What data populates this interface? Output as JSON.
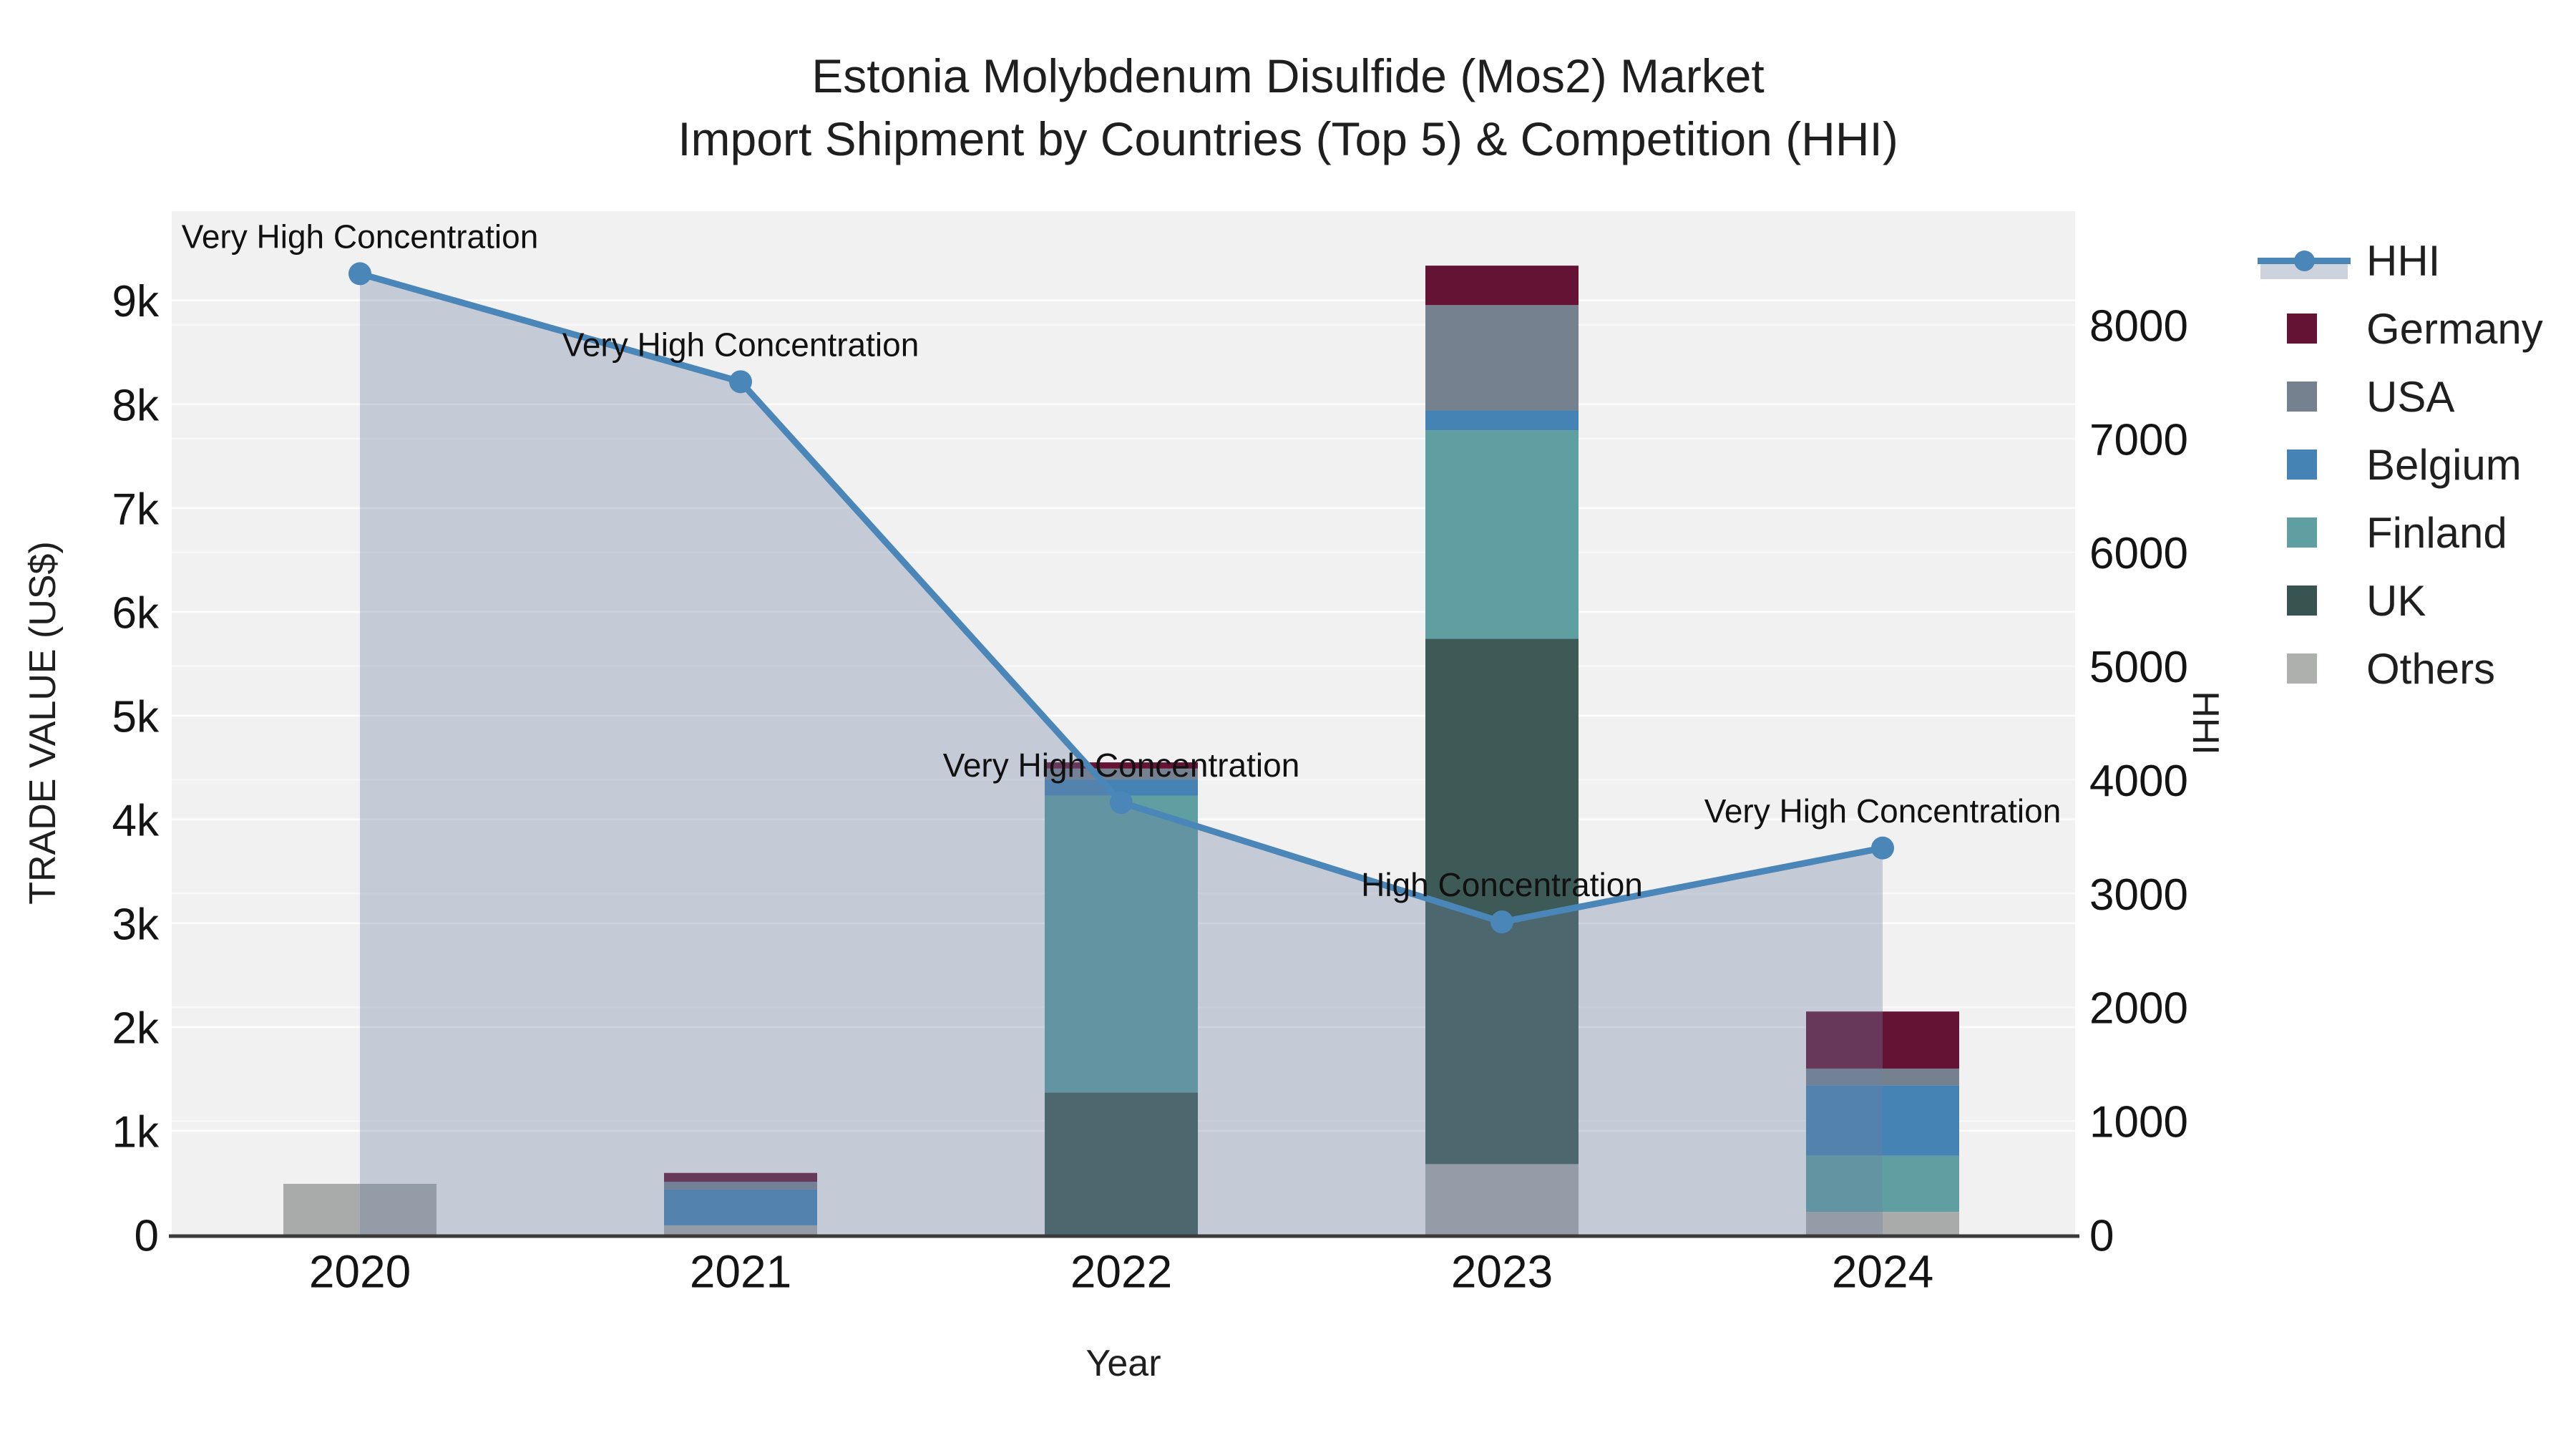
{
  "title": {
    "line1": "Estonia Molybdenum Disulfide (Mos2) Market",
    "line2": "Import Shipment by Countries (Top 5) & Competition (HHI)"
  },
  "chart_data": {
    "type": "bar",
    "subtype": "stacked-bars-with-line",
    "categories": [
      "2020",
      "2021",
      "2022",
      "2023",
      "2024"
    ],
    "series": [
      {
        "name": "Others",
        "color": "#a9abab",
        "values": [
          490,
          90,
          0,
          680,
          220
        ]
      },
      {
        "name": "UK",
        "color": "#3d5a56",
        "values": [
          0,
          0,
          1370,
          5060,
          0
        ]
      },
      {
        "name": "Finland",
        "color": "#5f9fa1",
        "values": [
          0,
          0,
          2860,
          2010,
          540
        ]
      },
      {
        "name": "Belgium",
        "color": "#4683b5",
        "values": [
          0,
          345,
          155,
          190,
          680
        ]
      },
      {
        "name": "USA",
        "color": "#75818f",
        "values": [
          0,
          75,
          105,
          1015,
          160
        ]
      },
      {
        "name": "Germany",
        "color": "#641335",
        "values": [
          0,
          85,
          60,
          380,
          550
        ]
      }
    ],
    "line_series": {
      "name": "HHI",
      "color": "#4a86b8",
      "fill": "rgba(108,130,162,0.34)",
      "values": [
        8450,
        7500,
        3800,
        2750,
        3400
      ]
    },
    "annotations": [
      "Very High Concentration",
      "Very High Concentration",
      "Very High Concentration",
      "High Concentration",
      "Very High Concentration"
    ],
    "axes": {
      "x": {
        "title": "Year"
      },
      "y_left": {
        "title": "TRADE VALUE (US$)",
        "tick_labels": [
          "0",
          "1k",
          "2k",
          "3k",
          "4k",
          "5k",
          "6k",
          "7k",
          "8k",
          "9k"
        ],
        "tick_values": [
          0,
          1000,
          2000,
          3000,
          4000,
          5000,
          6000,
          7000,
          8000,
          9000
        ],
        "max": 9860
      },
      "y_right": {
        "title": "HHI",
        "tick_labels": [
          "0",
          "1000",
          "2000",
          "3000",
          "4000",
          "5000",
          "6000",
          "7000",
          "8000"
        ],
        "tick_values": [
          0,
          1000,
          2000,
          3000,
          4000,
          5000,
          6000,
          7000,
          8000
        ],
        "max": 9000
      }
    },
    "legend": {
      "items": [
        {
          "label": "HHI",
          "type": "line",
          "color": "#4a86b8",
          "fill": "#ccd3dd"
        },
        {
          "label": "Germany",
          "type": "color",
          "color": "#641335"
        },
        {
          "label": "USA",
          "type": "color",
          "color": "#75818f"
        },
        {
          "label": "Belgium",
          "type": "color",
          "color": "#4683b5"
        },
        {
          "label": "Finland",
          "type": "color",
          "color": "#5f9fa1"
        },
        {
          "label": "UK",
          "type": "color",
          "color": "#375450"
        },
        {
          "label": "Others",
          "type": "color",
          "color": "#aeb0ae"
        }
      ]
    },
    "layout": {
      "plot_bg": "#f1f1f2",
      "grid_color": "#ffffff",
      "axis_line_color": "#3a3a3a",
      "text_color": "#141414",
      "legend_position": "right",
      "grid_on": true
    }
  }
}
